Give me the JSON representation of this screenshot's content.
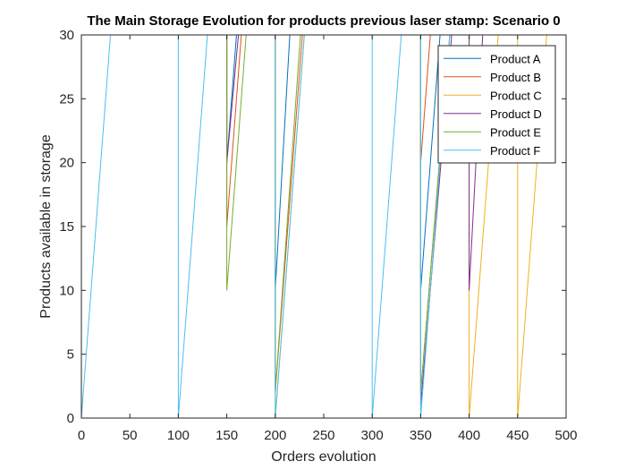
{
  "chart_data": {
    "type": "line",
    "title": "The Main Storage Evolution for products previous laser stamp: Scenario 0",
    "xlabel": "Orders evolution",
    "ylabel": "Products available in storage",
    "xlim": [
      0,
      500
    ],
    "ylim": [
      0,
      30
    ],
    "xticks": [
      0,
      50,
      100,
      150,
      200,
      250,
      300,
      350,
      400,
      450,
      500
    ],
    "yticks": [
      0,
      5,
      10,
      15,
      20,
      25,
      30
    ],
    "grid": false,
    "legend_position": "top-right",
    "series": [
      {
        "name": "Product A",
        "color": "#0072BD",
        "x": [
          0,
          150,
          150,
          160,
          200,
          200,
          215,
          350,
          350,
          370,
          500
        ],
        "y": [
          30,
          30,
          20,
          30,
          30,
          10,
          30,
          30,
          10,
          30,
          30
        ]
      },
      {
        "name": "Product B",
        "color": "#D95319",
        "x": [
          0,
          150,
          150,
          165,
          200,
          200,
          228,
          350,
          350,
          360,
          500
        ],
        "y": [
          30,
          30,
          15,
          30,
          30,
          2,
          30,
          30,
          20,
          30,
          30
        ]
      },
      {
        "name": "Product C",
        "color": "#EDB120",
        "x": [
          0,
          200,
          200,
          230,
          350,
          350,
          380,
          400,
          400,
          430,
          450,
          450,
          480,
          500
        ],
        "y": [
          30,
          30,
          0,
          30,
          30,
          2,
          30,
          30,
          0,
          30,
          30,
          0,
          30,
          30
        ]
      },
      {
        "name": "Product D",
        "color": "#7E2F8E",
        "x": [
          0,
          150,
          150,
          162,
          350,
          350,
          382,
          400,
          400,
          414,
          500
        ],
        "y": [
          30,
          30,
          20,
          30,
          30,
          1,
          30,
          30,
          10,
          30,
          30
        ]
      },
      {
        "name": "Product E",
        "color": "#77AC30",
        "x": [
          0,
          150,
          150,
          170,
          200,
          200,
          226,
          350,
          350,
          380,
          500
        ],
        "y": [
          30,
          30,
          10,
          30,
          30,
          2,
          30,
          30,
          2,
          30,
          30
        ]
      },
      {
        "name": "Product F",
        "color": "#4DBEEE",
        "x": [
          0,
          30,
          100,
          100,
          130,
          200,
          200,
          230,
          300,
          300,
          330,
          350,
          350,
          380,
          500
        ],
        "y": [
          0,
          30,
          30,
          0,
          30,
          30,
          0,
          30,
          30,
          0,
          30,
          30,
          0,
          30,
          30
        ]
      }
    ]
  }
}
